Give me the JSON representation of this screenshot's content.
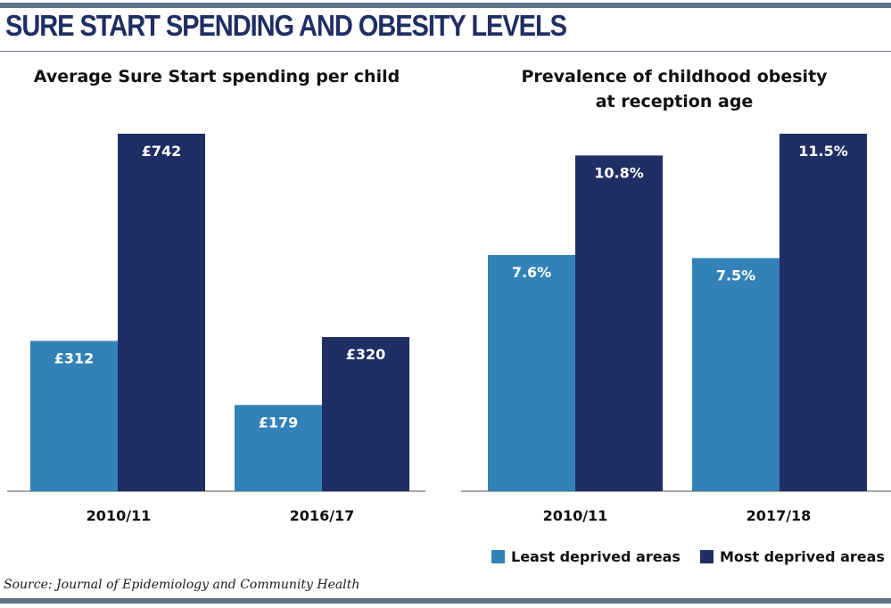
{
  "headline": "SURE START SPENDING AND OBESITY LEVELS",
  "source": "Source: Journal of Epidemiology and Community Health",
  "colors": {
    "least": "#3282b8",
    "most": "#1f2e63",
    "rule": "#5f7488"
  },
  "legend": {
    "least": "Least deprived areas",
    "most": "Most deprived areas"
  },
  "chart_data": [
    {
      "type": "bar",
      "title": [
        "Average Sure Start spending per child"
      ],
      "categories": [
        "2010/11",
        "2016/17"
      ],
      "series": [
        {
          "name": "Least deprived areas",
          "values": [
            312,
            179
          ],
          "labels": [
            "£312",
            "£179"
          ]
        },
        {
          "name": "Most deprived areas",
          "values": [
            742,
            320
          ],
          "labels": [
            "£742",
            "£320"
          ]
        }
      ],
      "ylim": [
        0,
        742
      ],
      "grid": false
    },
    {
      "type": "bar",
      "title": [
        "Prevalence of childhood obesity",
        "at reception age"
      ],
      "categories": [
        "2010/11",
        "2017/18"
      ],
      "series": [
        {
          "name": "Least deprived areas",
          "values": [
            7.6,
            7.5
          ],
          "labels": [
            "7.6%",
            "7.5%"
          ]
        },
        {
          "name": "Most deprived areas",
          "values": [
            10.8,
            11.5
          ],
          "labels": [
            "10.8%",
            "11.5%"
          ]
        }
      ],
      "ylim": [
        0,
        11.5
      ],
      "grid": false
    }
  ]
}
